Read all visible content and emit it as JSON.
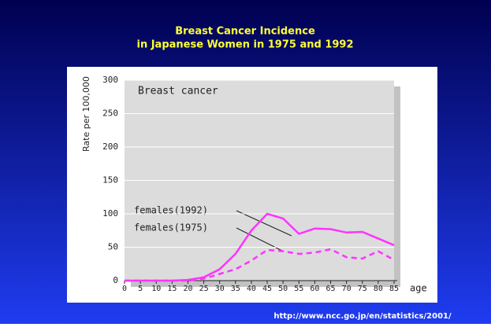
{
  "chart_data": {
    "type": "line",
    "title": "Breast Cancer Incidence",
    "subtitle": "in Japanese Women in 1975 and 1992",
    "panel_title": "Breast cancer",
    "ylabel": "Rate per 100,000",
    "xlabel": "age",
    "source": "http://www.ncc.go.jp/en/statistics/2001/",
    "x": [
      0,
      5,
      10,
      15,
      20,
      25,
      30,
      35,
      40,
      45,
      50,
      55,
      60,
      65,
      70,
      75,
      80,
      85
    ],
    "xlim": [
      0,
      85
    ],
    "xticks": [
      0,
      5,
      10,
      15,
      20,
      25,
      30,
      35,
      40,
      45,
      50,
      55,
      60,
      65,
      70,
      75,
      80,
      85
    ],
    "ylim": [
      0,
      300
    ],
    "yticks": [
      0,
      50,
      100,
      150,
      200,
      250,
      300
    ],
    "grid": true,
    "series": [
      {
        "name": "females(1992)",
        "color": "#ff33ff",
        "line_style": "solid",
        "values": [
          0,
          0,
          0,
          0,
          1,
          5,
          17,
          40,
          75,
          100,
          93,
          70,
          78,
          77,
          72,
          73,
          63,
          53
        ]
      },
      {
        "name": "females(1975)",
        "color": "#ff33ff",
        "line_style": "dashed",
        "values": [
          0,
          0,
          0,
          0,
          0,
          3,
          10,
          17,
          30,
          46,
          44,
          40,
          42,
          47,
          35,
          33,
          44,
          31
        ]
      }
    ]
  }
}
